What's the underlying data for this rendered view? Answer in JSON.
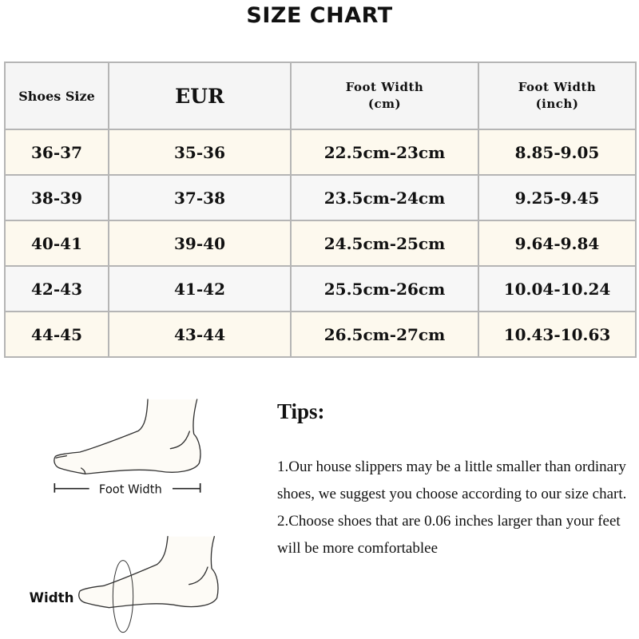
{
  "title": "SIZE CHART",
  "table": {
    "headers": [
      "Shoes Size",
      "EUR",
      "Foot Width",
      "(cm)",
      "Foot Width",
      "(inch)"
    ],
    "rows": [
      [
        "36-37",
        "35-36",
        "22.5cm-23cm",
        "8.85-9.05"
      ],
      [
        "38-39",
        "37-38",
        "23.5cm-24cm",
        "9.25-9.45"
      ],
      [
        "40-41",
        "39-40",
        "24.5cm-25cm",
        "9.64-9.84"
      ],
      [
        "42-43",
        "41-42",
        "25.5cm-26cm",
        "10.04-10.24"
      ],
      [
        "44-45",
        "43-44",
        "26.5cm-27cm",
        "10.43-10.63"
      ]
    ]
  },
  "diagram": {
    "foot_width_label": "Foot Width",
    "width_label": "Width"
  },
  "tips": {
    "title": "Tips:",
    "items": [
      "1.Our house slippers may be a little smaller than ordinary shoes, we suggest you choose according to our size chart.",
      "2.Choose shoes that are 0.06 inches larger than your feet will be more comfortablee"
    ]
  },
  "colors": {
    "odd_row": "#fdf9ee",
    "even_row": "#f7f7f7",
    "border": "#b5b5b5"
  }
}
